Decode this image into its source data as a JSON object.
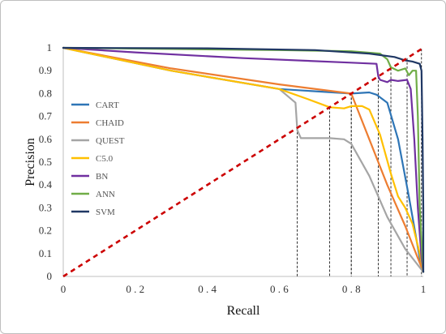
{
  "chart_data": {
    "type": "line",
    "title": "",
    "xlabel": "Recall",
    "ylabel": "Precision",
    "xlim": [
      0,
      1
    ],
    "ylim": [
      0,
      1
    ],
    "x_ticks": [
      "0",
      "0 . 2",
      "0 . 4",
      "0 . 6",
      "0 . 8",
      "1"
    ],
    "x_tick_values": [
      0,
      0.2,
      0.4,
      0.6,
      0.8,
      1
    ],
    "y_ticks": [
      "0",
      "0.1",
      "0.2",
      "0.3",
      "0.4",
      "0.5",
      "0.6",
      "0.7",
      "0.8",
      "0.9",
      "1"
    ],
    "y_tick_values": [
      0,
      0.1,
      0.2,
      0.3,
      0.4,
      0.5,
      0.6,
      0.7,
      0.8,
      0.9,
      1
    ],
    "grid": false,
    "legend_position": "left",
    "series": [
      {
        "name": "CART",
        "color": "#2E75B6",
        "points": [
          [
            0,
            1
          ],
          [
            0.3,
            0.9
          ],
          [
            0.6,
            0.82
          ],
          [
            0.8,
            0.8
          ],
          [
            0.85,
            0.805
          ],
          [
            0.87,
            0.795
          ],
          [
            0.9,
            0.76
          ],
          [
            0.93,
            0.6
          ],
          [
            0.96,
            0.35
          ],
          [
            0.99,
            0.08
          ],
          [
            1,
            0.02
          ]
        ]
      },
      {
        "name": "CHAID",
        "color": "#ED7D31",
        "points": [
          [
            0,
            1
          ],
          [
            0.3,
            0.91
          ],
          [
            0.6,
            0.84
          ],
          [
            0.8,
            0.8
          ],
          [
            0.85,
            0.6
          ],
          [
            0.9,
            0.4
          ],
          [
            0.95,
            0.22
          ],
          [
            0.98,
            0.1
          ],
          [
            1,
            0.02
          ]
        ]
      },
      {
        "name": "QUEST",
        "color": "#A5A5A5",
        "points": [
          [
            0,
            1
          ],
          [
            0.3,
            0.9
          ],
          [
            0.6,
            0.82
          ],
          [
            0.645,
            0.76
          ],
          [
            0.65,
            0.64
          ],
          [
            0.66,
            0.605
          ],
          [
            0.74,
            0.605
          ],
          [
            0.78,
            0.6
          ],
          [
            0.8,
            0.58
          ],
          [
            0.85,
            0.44
          ],
          [
            0.9,
            0.26
          ],
          [
            0.95,
            0.12
          ],
          [
            1,
            0.02
          ]
        ]
      },
      {
        "name": "C5.0",
        "color": "#FFC000",
        "points": [
          [
            0,
            1
          ],
          [
            0.3,
            0.9
          ],
          [
            0.6,
            0.82
          ],
          [
            0.68,
            0.775
          ],
          [
            0.74,
            0.74
          ],
          [
            0.78,
            0.735
          ],
          [
            0.8,
            0.745
          ],
          [
            0.83,
            0.745
          ],
          [
            0.85,
            0.73
          ],
          [
            0.88,
            0.62
          ],
          [
            0.91,
            0.45
          ],
          [
            0.93,
            0.35
          ],
          [
            0.95,
            0.3
          ],
          [
            0.97,
            0.23
          ],
          [
            0.99,
            0.1
          ],
          [
            1,
            0.02
          ]
        ]
      },
      {
        "name": "BN",
        "color": "#7030A0",
        "points": [
          [
            0,
            1
          ],
          [
            0.2,
            0.98
          ],
          [
            0.5,
            0.955
          ],
          [
            0.8,
            0.935
          ],
          [
            0.87,
            0.93
          ],
          [
            0.875,
            0.875
          ],
          [
            0.88,
            0.86
          ],
          [
            0.9,
            0.85
          ],
          [
            0.91,
            0.86
          ],
          [
            0.93,
            0.855
          ],
          [
            0.955,
            0.86
          ],
          [
            0.965,
            0.82
          ],
          [
            0.975,
            0.6
          ],
          [
            0.985,
            0.3
          ],
          [
            0.995,
            0.08
          ],
          [
            1,
            0.02
          ]
        ]
      },
      {
        "name": "ANN",
        "color": "#70AD47",
        "points": [
          [
            0,
            1
          ],
          [
            0.3,
            0.995
          ],
          [
            0.6,
            0.99
          ],
          [
            0.8,
            0.985
          ],
          [
            0.88,
            0.975
          ],
          [
            0.9,
            0.95
          ],
          [
            0.91,
            0.915
          ],
          [
            0.93,
            0.9
          ],
          [
            0.95,
            0.91
          ],
          [
            0.96,
            0.88
          ],
          [
            0.97,
            0.9
          ],
          [
            0.98,
            0.9
          ],
          [
            0.985,
            0.7
          ],
          [
            0.99,
            0.3
          ],
          [
            1,
            0.02
          ]
        ]
      },
      {
        "name": "SVM",
        "color": "#203864",
        "points": [
          [
            0,
            1
          ],
          [
            0.4,
            0.998
          ],
          [
            0.7,
            0.99
          ],
          [
            0.85,
            0.975
          ],
          [
            0.92,
            0.96
          ],
          [
            0.95,
            0.945
          ],
          [
            0.97,
            0.94
          ],
          [
            0.99,
            0.93
          ],
          [
            0.995,
            0.9
          ],
          [
            0.998,
            0.6
          ],
          [
            1,
            0.3
          ],
          [
            1,
            0.02
          ]
        ]
      }
    ],
    "reference_line": {
      "style": "dashed",
      "color": "#CC0000",
      "points": [
        [
          0,
          0
        ],
        [
          1,
          1
        ]
      ]
    },
    "vertical_guides": [
      0.65,
      0.74,
      0.8,
      0.8,
      0.875,
      0.91,
      0.955,
      0.995
    ]
  }
}
